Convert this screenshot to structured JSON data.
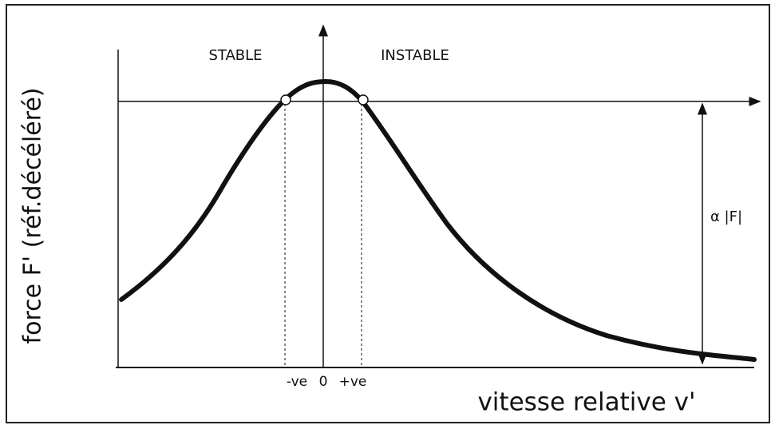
{
  "labels": {
    "stable": "STABLE",
    "instable": "INSTABLE",
    "y_axis": "force  F' (réf.décéléré)",
    "x_axis": "vitesse relative v'",
    "minus_ve": "-ve",
    "zero": "0",
    "plus_ve": "+ve",
    "force_gap": "α |F|"
  }
}
